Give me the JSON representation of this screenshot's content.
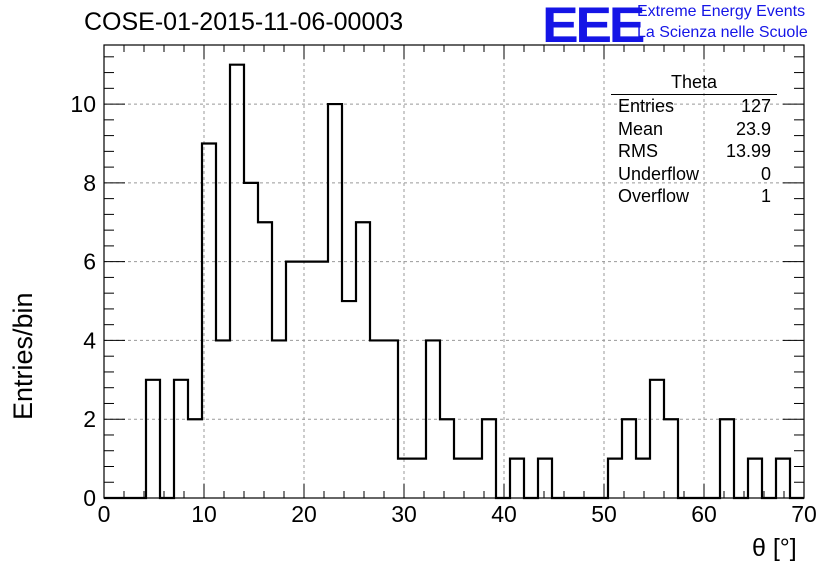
{
  "chart_data": {
    "type": "bar",
    "title": "COSE-01-2015-11-06-00003",
    "xlabel": "θ [°]",
    "ylabel": "Entries/bin",
    "xlim": [
      0,
      70
    ],
    "ylim": [
      0,
      11.5
    ],
    "bin_width": 1.4,
    "grid": true,
    "x_ticks": [
      "0",
      "10",
      "20",
      "30",
      "40",
      "50",
      "60",
      "70"
    ],
    "y_ticks": [
      "0",
      "2",
      "4",
      "6",
      "8",
      "10"
    ],
    "values": [
      0,
      0,
      0,
      3,
      0,
      3,
      2,
      9,
      4,
      11,
      8,
      7,
      4,
      6,
      6,
      6,
      10,
      5,
      7,
      4,
      4,
      1,
      1,
      4,
      2,
      1,
      1,
      2,
      0,
      1,
      0,
      1,
      0,
      0,
      0,
      0,
      1,
      2,
      1,
      3,
      2,
      0,
      0,
      0,
      2,
      0,
      1,
      0,
      1,
      0
    ]
  },
  "header": {
    "logo": "EEE",
    "line1": "Extreme Energy Events",
    "line2": "La Scienza nelle Scuole"
  },
  "stats": {
    "title": "Theta",
    "rows": [
      {
        "label": "Entries",
        "value": "127"
      },
      {
        "label": "Mean",
        "value": "23.9"
      },
      {
        "label": "RMS",
        "value": "13.99"
      },
      {
        "label": "Underflow",
        "value": "0"
      },
      {
        "label": "Overflow",
        "value": "1"
      }
    ]
  }
}
